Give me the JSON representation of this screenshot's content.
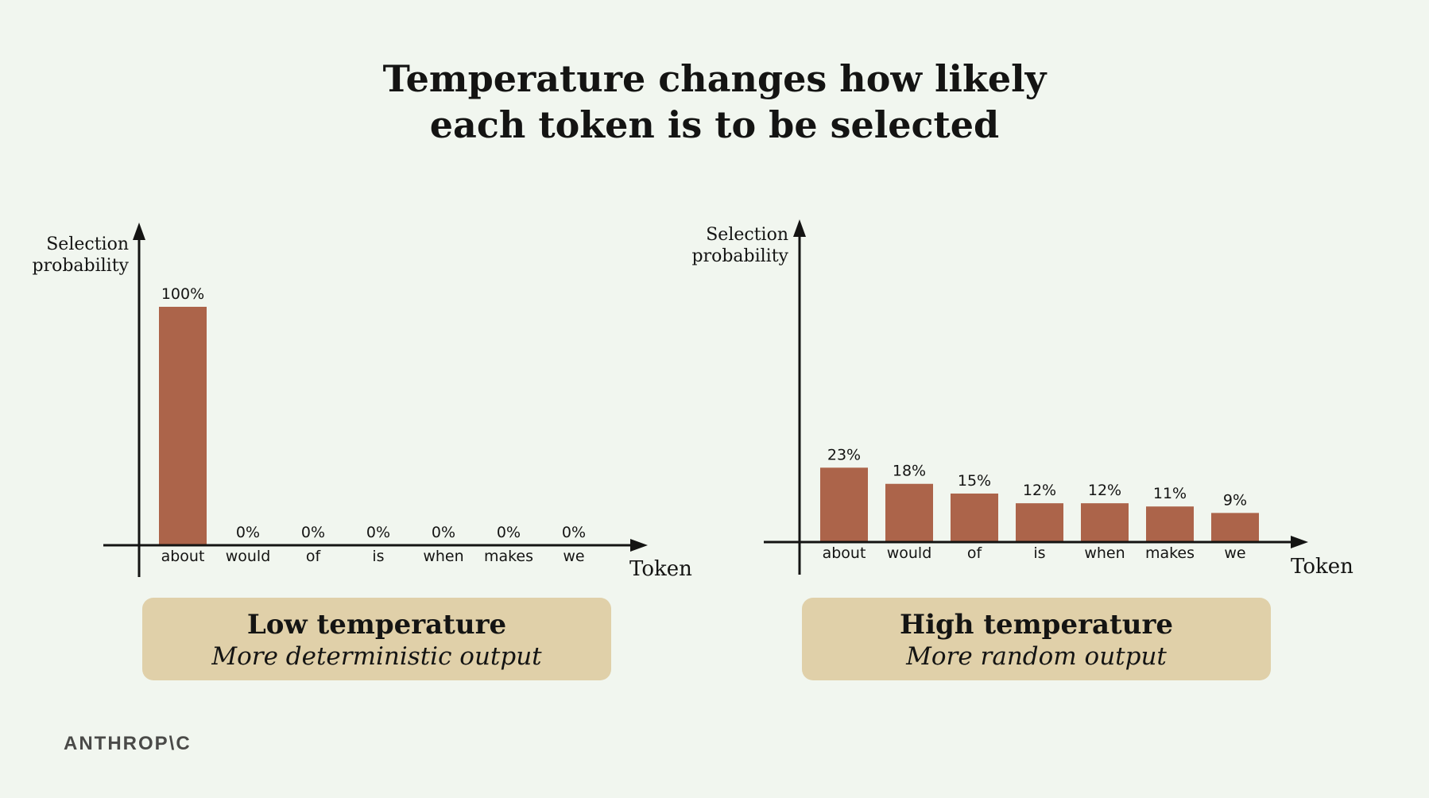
{
  "title": {
    "line1": "Temperature changes how likely",
    "line2": "each token is to be selected"
  },
  "chart_data": [
    {
      "type": "bar",
      "ylabel": [
        "Selection",
        "probability"
      ],
      "xlabel": "Token",
      "categories": [
        "about",
        "would",
        "of",
        "is",
        "when",
        "makes",
        "we"
      ],
      "values": [
        100,
        0,
        0,
        0,
        0,
        0,
        0
      ],
      "value_labels": [
        "100%",
        "0%",
        "0%",
        "0%",
        "0%",
        "0%",
        "0%"
      ],
      "ylim": [
        0,
        100
      ],
      "color": "#ac644a"
    },
    {
      "type": "bar",
      "ylabel": [
        "Selection",
        "probability"
      ],
      "xlabel": "Token",
      "categories": [
        "about",
        "would",
        "of",
        "is",
        "when",
        "makes",
        "we"
      ],
      "values": [
        23,
        18,
        15,
        12,
        12,
        11,
        9
      ],
      "value_labels": [
        "23%",
        "18%",
        "15%",
        "12%",
        "12%",
        "11%",
        "9%"
      ],
      "ylim": [
        0,
        100
      ],
      "color": "#ac644a"
    }
  ],
  "captions": [
    {
      "title": "Low temperature",
      "subtitle": "More deterministic output"
    },
    {
      "title": "High temperature",
      "subtitle": "More random output"
    }
  ],
  "logo": "ANTHROP\\C",
  "colors": {
    "background": "#f1f6ef",
    "bar": "#ac644a",
    "caption_box": "#e0d0a9",
    "text": "#141413"
  }
}
